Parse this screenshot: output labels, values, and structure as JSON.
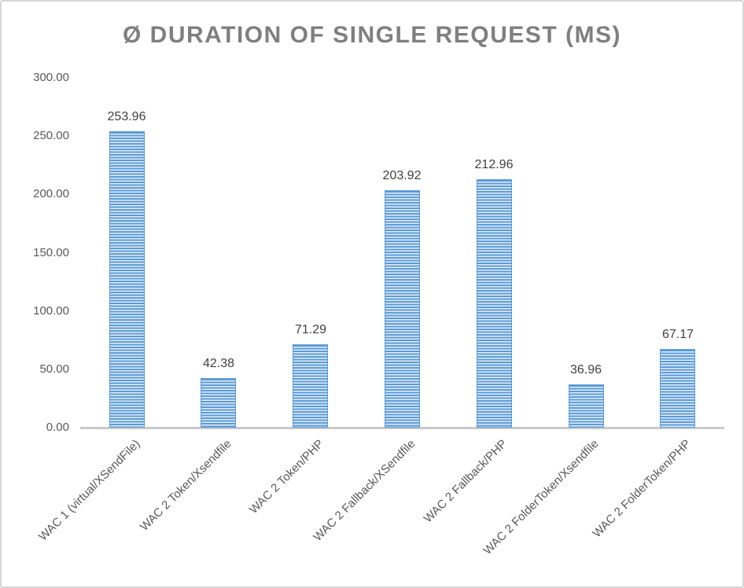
{
  "chart_data": {
    "type": "bar",
    "title": "Ø DURATION OF SINGLE REQUEST (MS)",
    "categories": [
      "WAC 1 (virtual/XSendFile)",
      "WAC 2 Token/Xsendfile",
      "WAC 2 Token/PHP",
      "WAC 2 Fallback/XSendfile",
      "WAC 2 Fallback/PHP",
      "WAC 2 FolderToken/Xsendfile",
      "WAC 2 FolderToken/PHP"
    ],
    "values": [
      253.96,
      42.38,
      71.29,
      203.92,
      212.96,
      36.96,
      67.17
    ],
    "value_labels": [
      "253.96",
      "42.38",
      "71.29",
      "203.92",
      "212.96",
      "36.96",
      "67.17"
    ],
    "y_ticks": [
      "0.00",
      "50.00",
      "100.00",
      "150.00",
      "200.00",
      "250.00",
      "300.00"
    ],
    "ylim": [
      0,
      300
    ],
    "xlabel": "",
    "ylabel": "",
    "grid": false,
    "legend": false,
    "colors": {
      "bar_stripe_dark": "#5b9bd5",
      "bar_stripe_light": "#e4eefa",
      "bar_border": "#5b9bd5",
      "axis_line": "#c9c9c9",
      "title_text": "#7f7f7f",
      "value_label_text": "#404040",
      "tick_text": "#595959",
      "frame_border": "#d6d6d6",
      "background": "#ffffff"
    }
  }
}
